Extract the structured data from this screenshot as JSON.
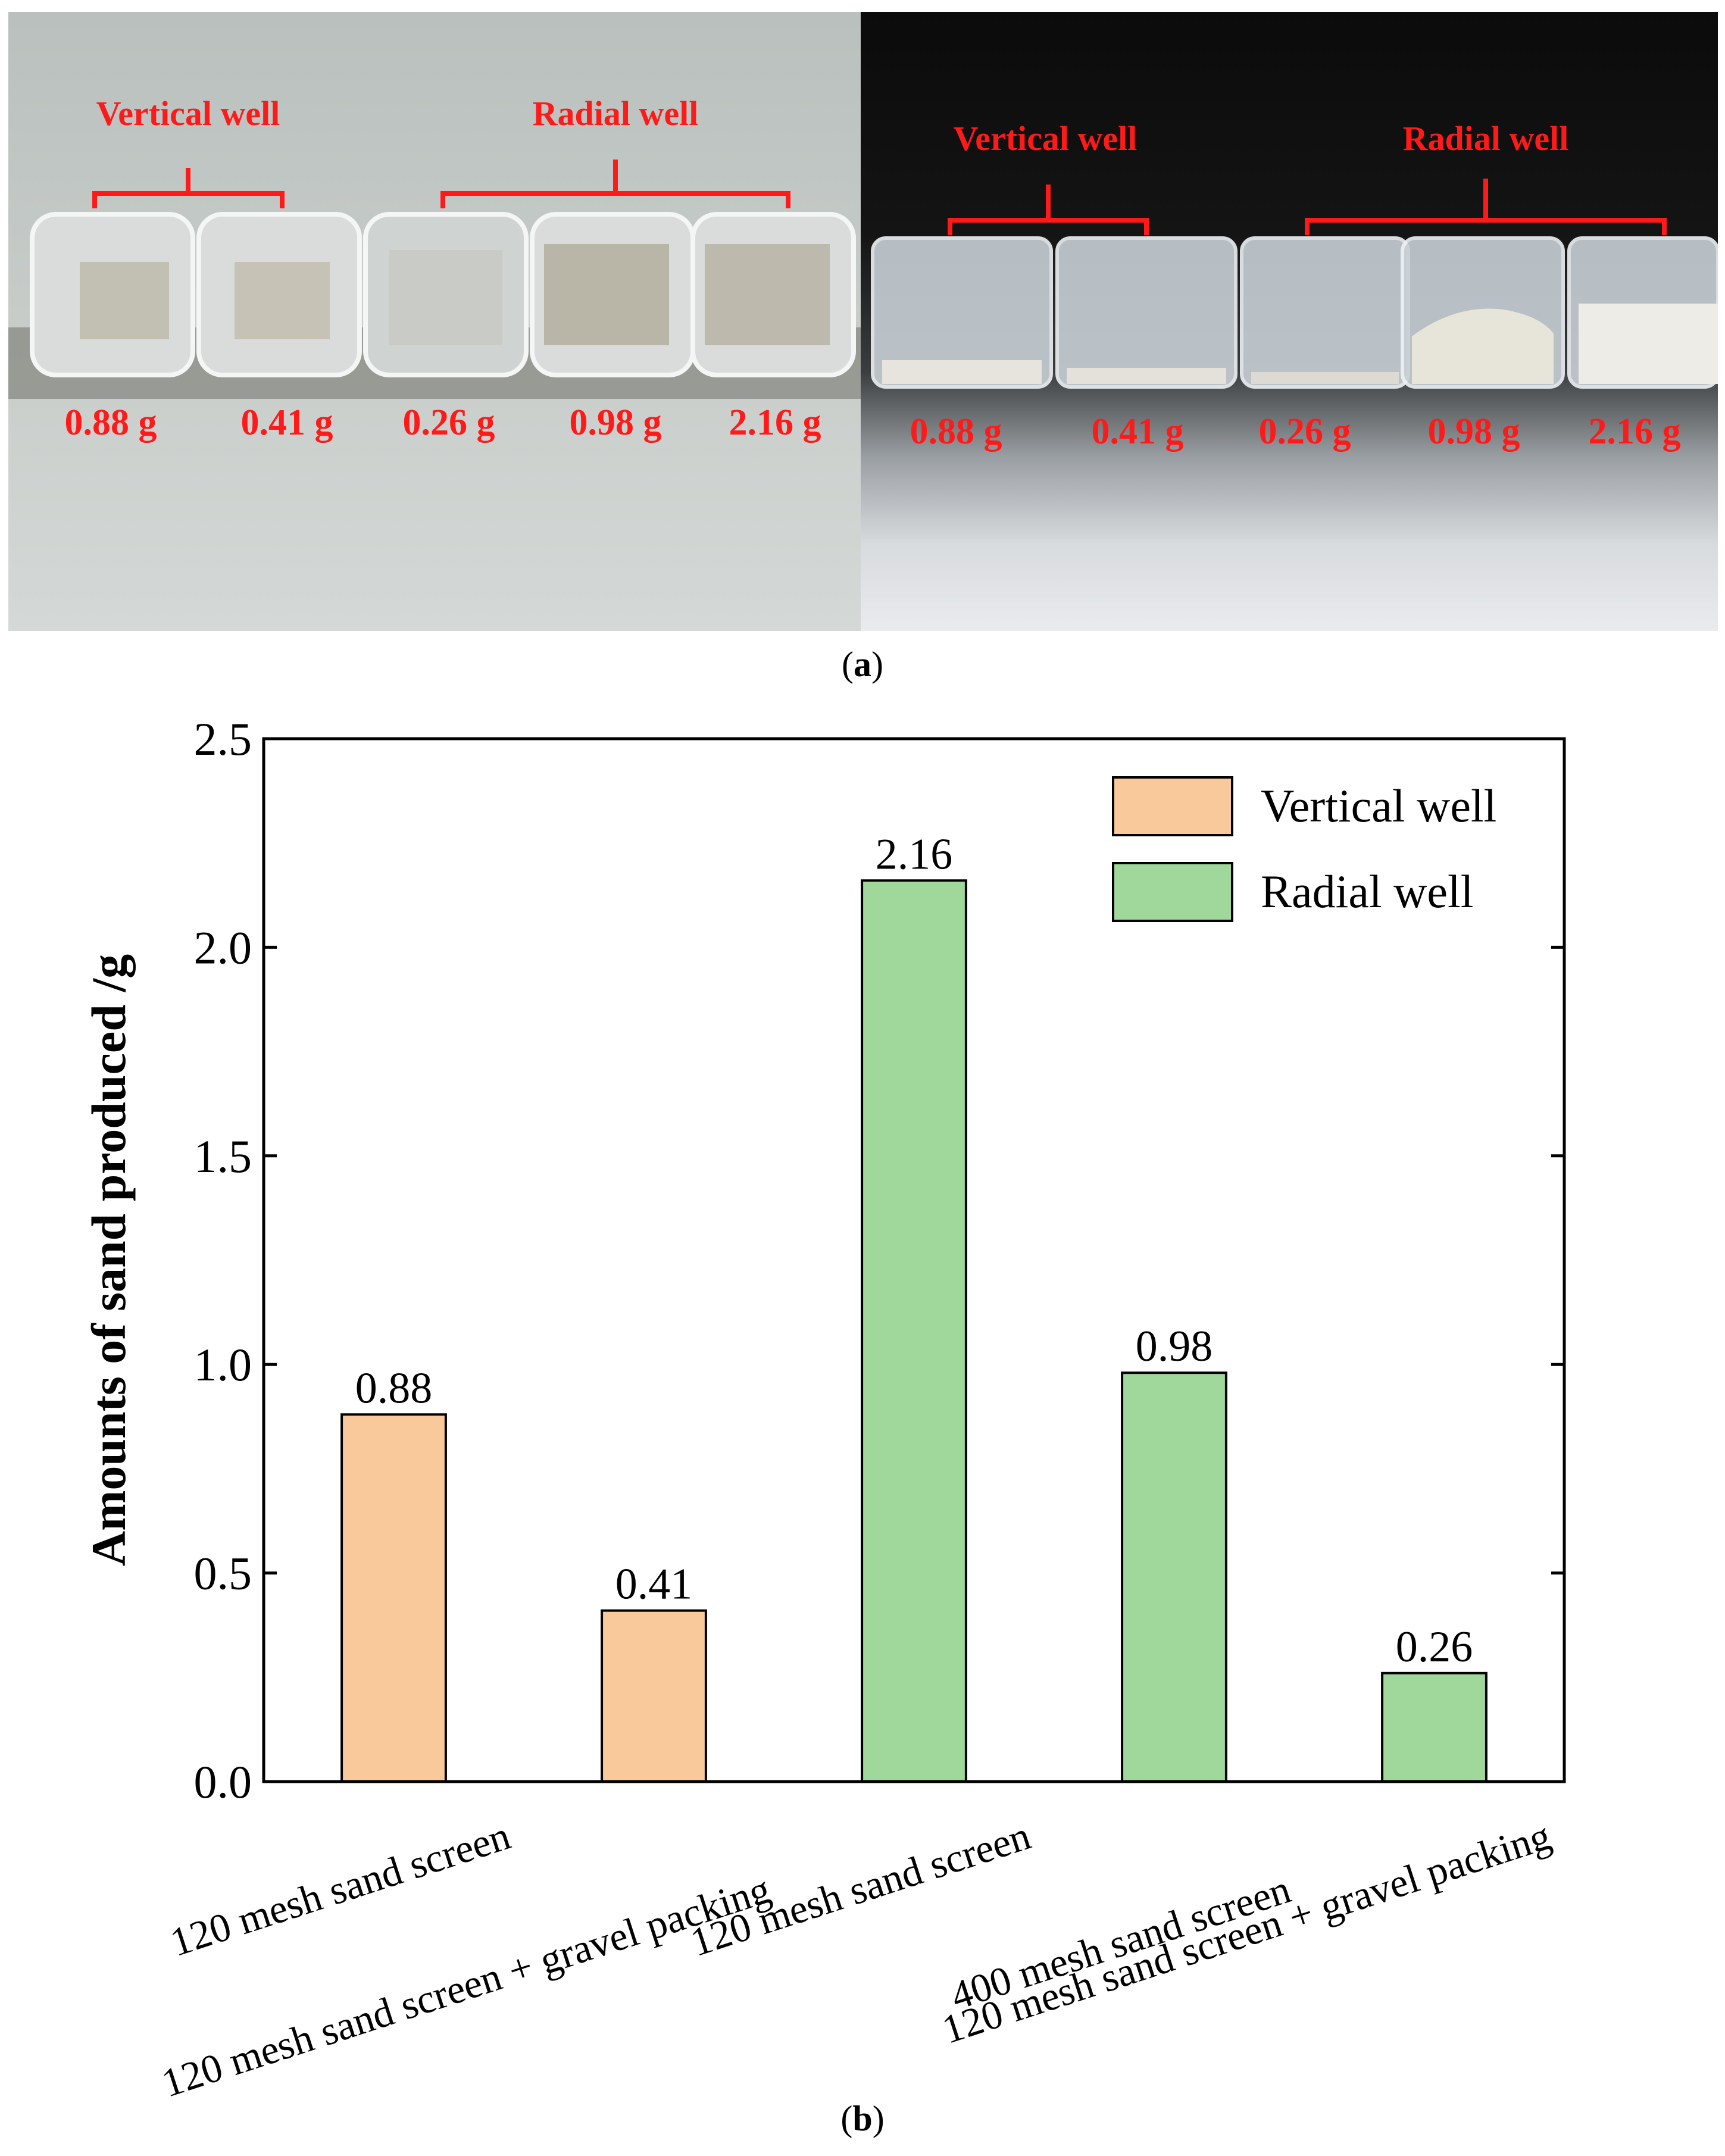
{
  "panel_a": {
    "caption_letter": "a",
    "left_photo": {
      "group_labels": [
        "Vertical well",
        "Radial well"
      ],
      "masses": [
        "0.88 g",
        "0.41 g",
        "0.26 g",
        "0.98 g",
        "2.16 g"
      ]
    },
    "right_photo": {
      "group_labels": [
        "Vertical well",
        "Radial well"
      ],
      "masses": [
        "0.88 g",
        "0.41 g",
        "0.26 g",
        "0.98 g",
        "2.16 g"
      ]
    },
    "label_color": "#ff1a1a"
  },
  "panel_b": {
    "caption_letter": "b"
  },
  "chart_data": {
    "type": "bar",
    "ylabel": "Amounts of sand produced /g",
    "xlabel": "",
    "ylim": [
      0,
      2.5
    ],
    "yticks": [
      0.0,
      0.5,
      1.0,
      1.5,
      2.0,
      2.5
    ],
    "ytick_labels": [
      "0.0",
      "0.5",
      "1.0",
      "1.5",
      "2.0",
      "2.5"
    ],
    "categories": [
      "120 mesh sand screen",
      "120 mesh sand screen + gravel packing",
      "120 mesh sand screen",
      "400 mesh sand screen",
      "120 mesh sand screen + gravel packing"
    ],
    "series": [
      {
        "name": "Vertical well",
        "color": "#f9c89b",
        "values": [
          0.88,
          0.41,
          null,
          null,
          null
        ],
        "labels": [
          "0.88",
          "0.41",
          null,
          null,
          null
        ]
      },
      {
        "name": "Radial well",
        "color": "#a0d89c",
        "values": [
          null,
          null,
          2.16,
          0.98,
          0.26
        ],
        "labels": [
          null,
          null,
          "2.16",
          "0.98",
          "0.26"
        ]
      }
    ],
    "legend": {
      "position": "top-right",
      "entries": [
        "Vertical well",
        "Radial well"
      ]
    },
    "grid": false
  }
}
